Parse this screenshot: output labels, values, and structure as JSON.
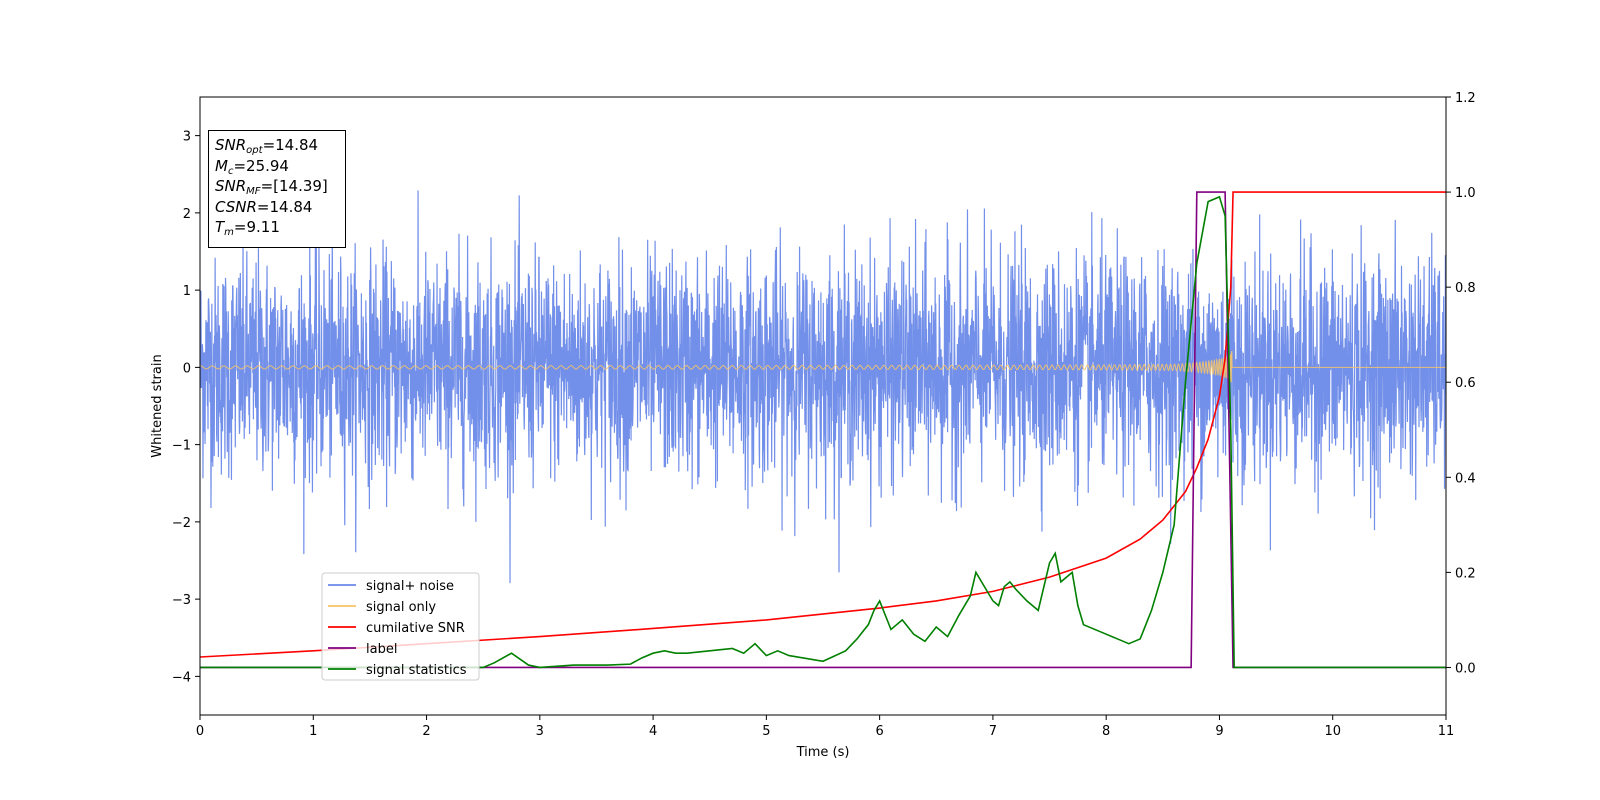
{
  "chart_data": {
    "type": "line",
    "xlabel": "Time (s)",
    "ylabel": "Whitened strain",
    "xlim": [
      0,
      11
    ],
    "ylim": [
      -4.5,
      3.5
    ],
    "y2lim": [
      -0.1,
      1.2
    ],
    "xticks": [
      "0",
      "1",
      "2",
      "3",
      "4",
      "5",
      "6",
      "7",
      "8",
      "9",
      "10",
      "11"
    ],
    "yticks": [
      "3",
      "2",
      "1",
      "0",
      "−1",
      "−2",
      "−3",
      "−4"
    ],
    "y2ticks": [
      "1.2",
      "1.0",
      "0.8",
      "0.6",
      "0.4",
      "0.2",
      "0.0"
    ],
    "legend": {
      "position": "lower-left",
      "entries": [
        {
          "label": "signal+ noise",
          "color": "#6a89e8"
        },
        {
          "label": "signal only",
          "color": "#f5c46a"
        },
        {
          "label": "cumilative SNR",
          "color": "#ff0000"
        },
        {
          "label": "label",
          "color": "#800080"
        },
        {
          "label": "signal statistics",
          "color": "#008000"
        }
      ]
    },
    "series": [
      {
        "name": "signal+ noise",
        "axis": "left",
        "color": "#6a89e8",
        "noise_std": 0.7,
        "x_range": [
          0,
          11
        ]
      },
      {
        "name": "signal only",
        "axis": "left",
        "color": "#f5c46a",
        "merger_time": 9.11,
        "x_range": [
          0,
          11
        ]
      },
      {
        "name": "cumilative SNR",
        "axis": "right",
        "color": "#ff0000",
        "x": [
          0,
          1,
          2,
          3,
          4,
          5,
          6,
          6.5,
          7,
          7.5,
          8,
          8.3,
          8.5,
          8.7,
          8.8,
          8.9,
          9.0,
          9.05,
          9.1,
          9.12,
          11
        ],
        "y": [
          0.022,
          0.035,
          0.05,
          0.065,
          0.082,
          0.1,
          0.125,
          0.14,
          0.16,
          0.19,
          0.23,
          0.27,
          0.31,
          0.37,
          0.42,
          0.48,
          0.57,
          0.65,
          0.8,
          1.0,
          1.0
        ]
      },
      {
        "name": "label",
        "axis": "right",
        "color": "#800080",
        "x": [
          0,
          8.75,
          8.8,
          9.05,
          9.12,
          11
        ],
        "y": [
          0.0,
          0.0,
          1.0,
          1.0,
          0.0,
          0.0
        ]
      },
      {
        "name": "signal statistics",
        "axis": "right",
        "color": "#008000",
        "x": [
          0,
          0.5,
          1,
          1.5,
          2,
          2.5,
          2.6,
          2.75,
          2.9,
          3.0,
          3.3,
          3.6,
          3.8,
          3.9,
          4.0,
          4.1,
          4.2,
          4.3,
          4.5,
          4.7,
          4.8,
          4.9,
          5.0,
          5.1,
          5.2,
          5.5,
          5.7,
          5.8,
          5.9,
          5.95,
          6.0,
          6.1,
          6.2,
          6.3,
          6.4,
          6.5,
          6.6,
          6.7,
          6.8,
          6.85,
          6.9,
          7.0,
          7.05,
          7.1,
          7.15,
          7.2,
          7.3,
          7.4,
          7.5,
          7.55,
          7.6,
          7.65,
          7.7,
          7.75,
          7.8,
          7.9,
          8.0,
          8.1,
          8.2,
          8.3,
          8.4,
          8.5,
          8.6,
          8.7,
          8.8,
          8.9,
          9.0,
          9.05,
          9.1,
          9.13,
          9.2,
          11
        ],
        "y": [
          0.0,
          0.0,
          0.0,
          0.0,
          0.0,
          0.0,
          0.01,
          0.03,
          0.005,
          0.0,
          0.005,
          0.005,
          0.007,
          0.02,
          0.03,
          0.035,
          0.03,
          0.03,
          0.035,
          0.04,
          0.03,
          0.05,
          0.025,
          0.035,
          0.025,
          0.013,
          0.035,
          0.06,
          0.09,
          0.12,
          0.14,
          0.08,
          0.1,
          0.07,
          0.055,
          0.085,
          0.065,
          0.11,
          0.15,
          0.2,
          0.18,
          0.14,
          0.13,
          0.17,
          0.18,
          0.165,
          0.14,
          0.12,
          0.22,
          0.24,
          0.18,
          0.19,
          0.2,
          0.13,
          0.09,
          0.08,
          0.07,
          0.06,
          0.05,
          0.06,
          0.12,
          0.2,
          0.3,
          0.6,
          0.85,
          0.98,
          0.99,
          0.95,
          0.5,
          0.0,
          0.0,
          0.0
        ]
      }
    ]
  },
  "info_box": {
    "snr_opt_label": "SNR",
    "snr_opt_sub": "opt",
    "snr_opt_value": "=14.84",
    "mc_label": "M",
    "mc_sub": "c",
    "mc_value": "=25.94",
    "snr_mf_label": "SNR",
    "snr_mf_sub": "MF",
    "snr_mf_value": "=[14.39]",
    "csnr_label": "CSNR",
    "csnr_value": "=14.84",
    "tm_label": "T",
    "tm_sub": "m",
    "tm_value": "=9.11"
  }
}
